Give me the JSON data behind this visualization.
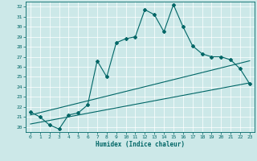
{
  "xlabel": "Humidex (Indice chaleur)",
  "ylabel": "",
  "bg_color": "#cce8e8",
  "line_color": "#006666",
  "grid_color": "#ffffff",
  "xlim": [
    -0.5,
    23.5
  ],
  "ylim": [
    19.5,
    32.5
  ],
  "yticks": [
    20,
    21,
    22,
    23,
    24,
    25,
    26,
    27,
    28,
    29,
    30,
    31,
    32
  ],
  "xticks": [
    0,
    1,
    2,
    3,
    4,
    5,
    6,
    7,
    8,
    9,
    10,
    11,
    12,
    13,
    14,
    15,
    16,
    17,
    18,
    19,
    20,
    21,
    22,
    23
  ],
  "main_x": [
    0,
    1,
    2,
    3,
    4,
    5,
    6,
    7,
    8,
    9,
    10,
    11,
    12,
    13,
    14,
    15,
    16,
    17,
    18,
    19,
    20,
    21,
    22,
    23
  ],
  "main_y": [
    21.5,
    21.0,
    20.2,
    19.8,
    21.2,
    21.4,
    22.2,
    26.6,
    25.0,
    28.4,
    28.8,
    29.0,
    31.7,
    31.2,
    29.5,
    32.2,
    30.0,
    28.1,
    27.3,
    27.0,
    27.0,
    26.7,
    25.8,
    24.3
  ],
  "line2_x": [
    0,
    23
  ],
  "line2_y": [
    20.3,
    24.4
  ],
  "line3_x": [
    0,
    23
  ],
  "line3_y": [
    21.2,
    26.6
  ]
}
